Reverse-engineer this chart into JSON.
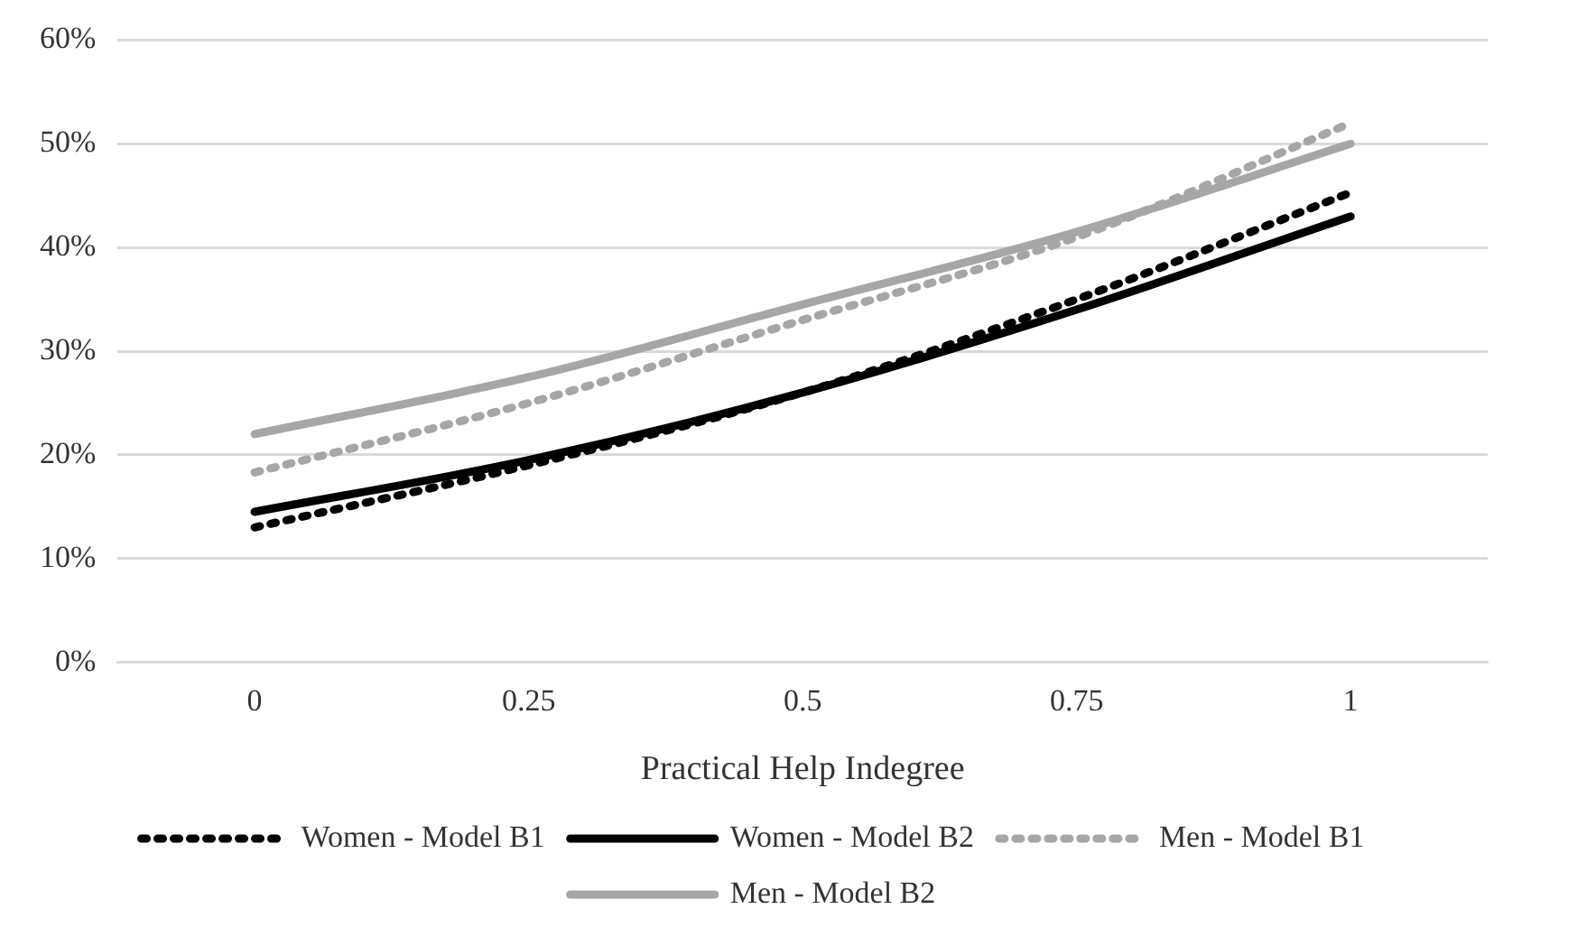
{
  "chart_data": {
    "type": "line",
    "xlabel": "Practical Help Indegree",
    "categories": [
      "0",
      "0.25",
      "0.5",
      "0.75",
      "1"
    ],
    "series": [
      {
        "name": "Women - Model B1",
        "color": "#000000",
        "line_style": "dotted",
        "values": [
          13,
          19,
          26,
          35,
          45.3
        ]
      },
      {
        "name": "Women - Model B2",
        "color": "#000000",
        "line_style": "solid",
        "values": [
          14.5,
          19.5,
          26,
          34,
          43
        ]
      },
      {
        "name": "Men - Model B1",
        "color": "#a6a6a6",
        "line_style": "dotted",
        "values": [
          18.3,
          25,
          33,
          41,
          52
        ]
      },
      {
        "name": "Men - Model B2",
        "color": "#a6a6a6",
        "line_style": "solid",
        "values": [
          22,
          27.5,
          34.5,
          41.5,
          50
        ]
      }
    ],
    "ylim": [
      0,
      60
    ],
    "yticks": [
      {
        "value": 0,
        "label": "0%"
      },
      {
        "value": 10,
        "label": "10%"
      },
      {
        "value": 20,
        "label": "20%"
      },
      {
        "value": 30,
        "label": "30%"
      },
      {
        "value": 40,
        "label": "40%"
      },
      {
        "value": 50,
        "label": "50%"
      },
      {
        "value": 60,
        "label": "60%"
      }
    ],
    "grid": "y",
    "legend": "bottom",
    "marker": "none"
  }
}
